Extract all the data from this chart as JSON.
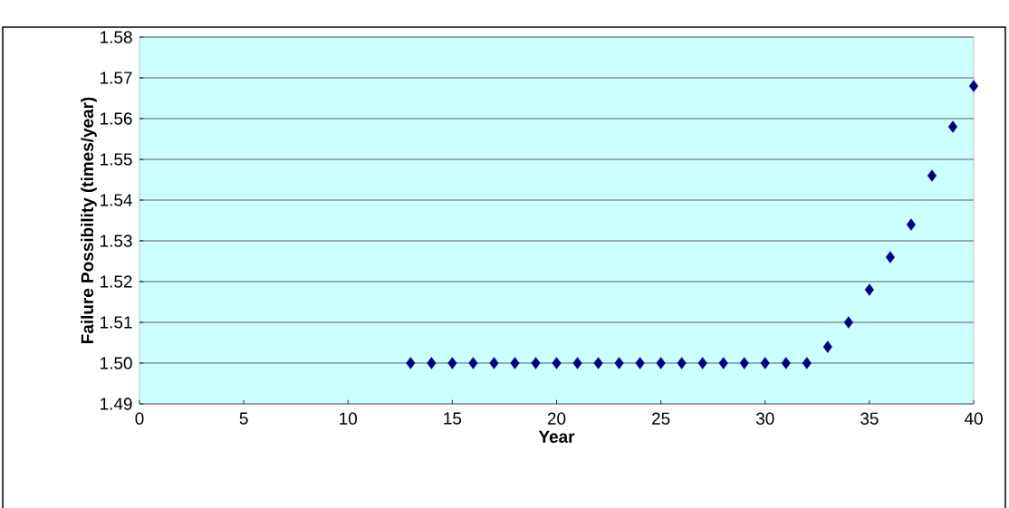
{
  "chart_data": {
    "type": "scatter",
    "xlabel": "Year",
    "ylabel": "Failure Possibility (times/year)",
    "x": [
      13,
      14,
      15,
      16,
      17,
      18,
      19,
      20,
      21,
      22,
      23,
      24,
      25,
      26,
      27,
      28,
      29,
      30,
      31,
      32,
      33,
      34,
      35,
      36,
      37,
      38,
      39,
      40
    ],
    "series": [
      {
        "color": "#000080",
        "values": [
          1.5,
          1.5,
          1.5,
          1.5,
          1.5,
          1.5,
          1.5,
          1.5,
          1.5,
          1.5,
          1.5,
          1.5,
          1.5,
          1.5,
          1.5,
          1.5,
          1.5,
          1.5,
          1.5,
          1.5,
          1.504,
          1.51,
          1.518,
          1.526,
          1.534,
          1.546,
          1.558,
          1.568
        ]
      }
    ],
    "xlim": [
      0,
      40
    ],
    "xticks": [
      0,
      5,
      10,
      15,
      20,
      25,
      30,
      35,
      40
    ],
    "ylim": [
      1.49,
      1.58
    ],
    "yticks": [
      1.49,
      {
        "value": 1.5,
        "label": "1.50"
      },
      1.51,
      1.52,
      1.53,
      1.54,
      1.55,
      1.56,
      1.57,
      1.58
    ],
    "grid": "y",
    "marker": "diamond"
  }
}
